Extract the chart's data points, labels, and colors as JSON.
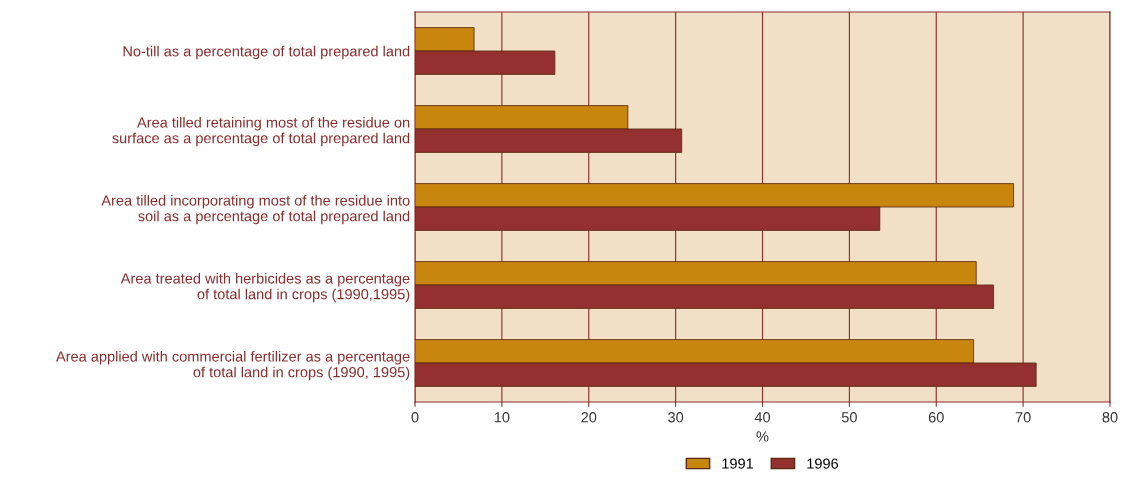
{
  "chart_data": {
    "type": "bar",
    "orientation": "horizontal",
    "xlabel": "%",
    "categories": [
      "No-till as a percentage of total prepared land",
      "Area tilled retaining most of the residue on\nsurface as a percentage of total prepared land",
      "Area tilled incorporating most of the residue into\nsoil as a percentage of total prepared land",
      "Area treated with herbicides as a percentage\nof total land in crops (1990,1995)",
      "Area applied with commercial fertilizer as a percentage\nof total land in crops (1990, 1995)"
    ],
    "series": [
      {
        "name": "1991",
        "color": "#c8860f",
        "values": [
          6.8,
          24.5,
          68.9,
          64.6,
          64.3
        ]
      },
      {
        "name": "1996",
        "color": "#943030",
        "values": [
          16.1,
          30.7,
          53.5,
          66.6,
          71.5
        ]
      }
    ],
    "xlim": [
      0,
      80
    ],
    "xticks": [
      0,
      10,
      20,
      30,
      40,
      50,
      60,
      70,
      80
    ],
    "grid": "x",
    "legend": "bottom"
  }
}
